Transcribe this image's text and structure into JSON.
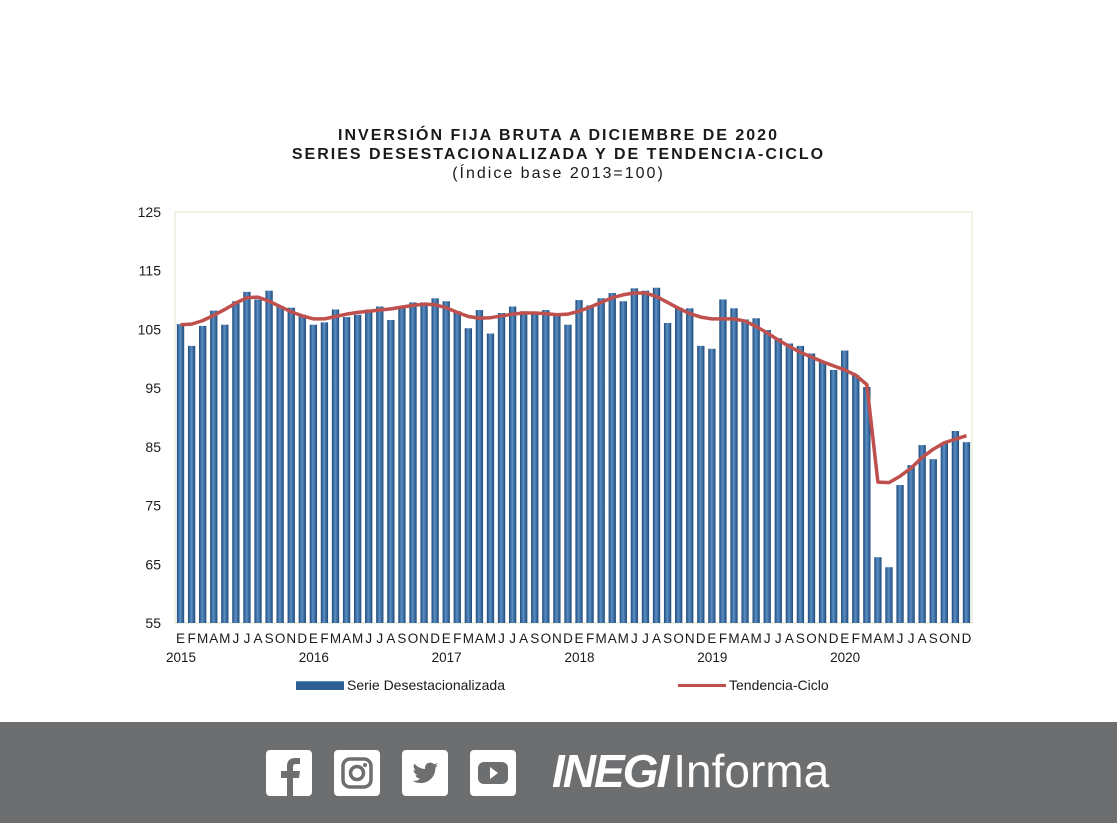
{
  "chart_data": {
    "type": "bar",
    "title": "INVERSIÓN FIJA BRUTA A DICIEMBRE DE 2020",
    "subtitle": "SERIES DESESTACIONALIZADA Y DE TENDENCIA-CICLO",
    "subtitle2": "(Índice base 2013=100)",
    "xlabel": "",
    "ylabel": "",
    "ylim": [
      55,
      125
    ],
    "yticks": [
      55,
      65,
      75,
      85,
      95,
      105,
      115,
      125
    ],
    "grid": false,
    "legend_position": "bottom",
    "month_labels": [
      "E",
      "F",
      "M",
      "A",
      "M",
      "J",
      "J",
      "A",
      "S",
      "O",
      "N",
      "D"
    ],
    "year_labels": [
      "2015",
      "2016",
      "2017",
      "2018",
      "2019",
      "2020"
    ],
    "series": [
      {
        "name": "Serie Desestacionalizada",
        "color": "#2e5f93",
        "values": [
          105.9,
          102.2,
          105.6,
          108.2,
          105.8,
          109.8,
          111.4,
          110.1,
          111.6,
          109.0,
          108.7,
          107.5,
          105.8,
          106.2,
          108.4,
          107.1,
          107.5,
          108.4,
          108.9,
          106.6,
          108.8,
          109.6,
          109.6,
          110.3,
          109.8,
          108.1,
          105.2,
          108.3,
          104.3,
          107.8,
          108.9,
          108.1,
          107.6,
          108.3,
          107.5,
          105.8,
          110.0,
          109.1,
          110.3,
          111.2,
          109.8,
          112.0,
          111.6,
          112.1,
          106.1,
          108.7,
          108.6,
          102.2,
          101.7,
          110.1,
          108.6,
          106.7,
          106.9,
          104.9,
          103.5,
          102.6,
          102.2,
          100.9,
          99.4,
          98.1,
          101.4,
          97.2,
          95.2,
          66.2,
          64.5,
          78.5,
          81.9,
          85.3,
          82.9,
          85.6,
          87.7,
          85.8
        ]
      },
      {
        "name": "Tendencia-Ciclo",
        "color": "#c0504d",
        "values": [
          105.8,
          105.9,
          106.5,
          107.4,
          108.4,
          109.5,
          110.4,
          110.5,
          109.8,
          108.9,
          108.0,
          107.3,
          106.8,
          106.8,
          107.2,
          107.6,
          107.9,
          108.1,
          108.3,
          108.5,
          108.8,
          109.1,
          109.3,
          109.2,
          108.7,
          107.9,
          107.2,
          106.9,
          107.0,
          107.3,
          107.6,
          107.8,
          107.8,
          107.7,
          107.5,
          107.6,
          108.1,
          108.8,
          109.6,
          110.4,
          110.9,
          111.2,
          111.2,
          110.6,
          109.6,
          108.6,
          107.7,
          107.1,
          106.8,
          106.8,
          106.8,
          106.4,
          105.5,
          104.4,
          103.2,
          102.1,
          101.1,
          100.3,
          99.5,
          98.8,
          98.1,
          97.2,
          95.6,
          79.0,
          78.9,
          80.0,
          81.4,
          83.2,
          84.6,
          85.7,
          86.3,
          86.9
        ]
      }
    ]
  },
  "footer": {
    "icons": [
      "facebook-icon",
      "instagram-icon",
      "twitter-icon",
      "youtube-icon"
    ],
    "brand_bold": "INEGI",
    "brand_light": "Informa",
    "background": "#6d6e70"
  }
}
